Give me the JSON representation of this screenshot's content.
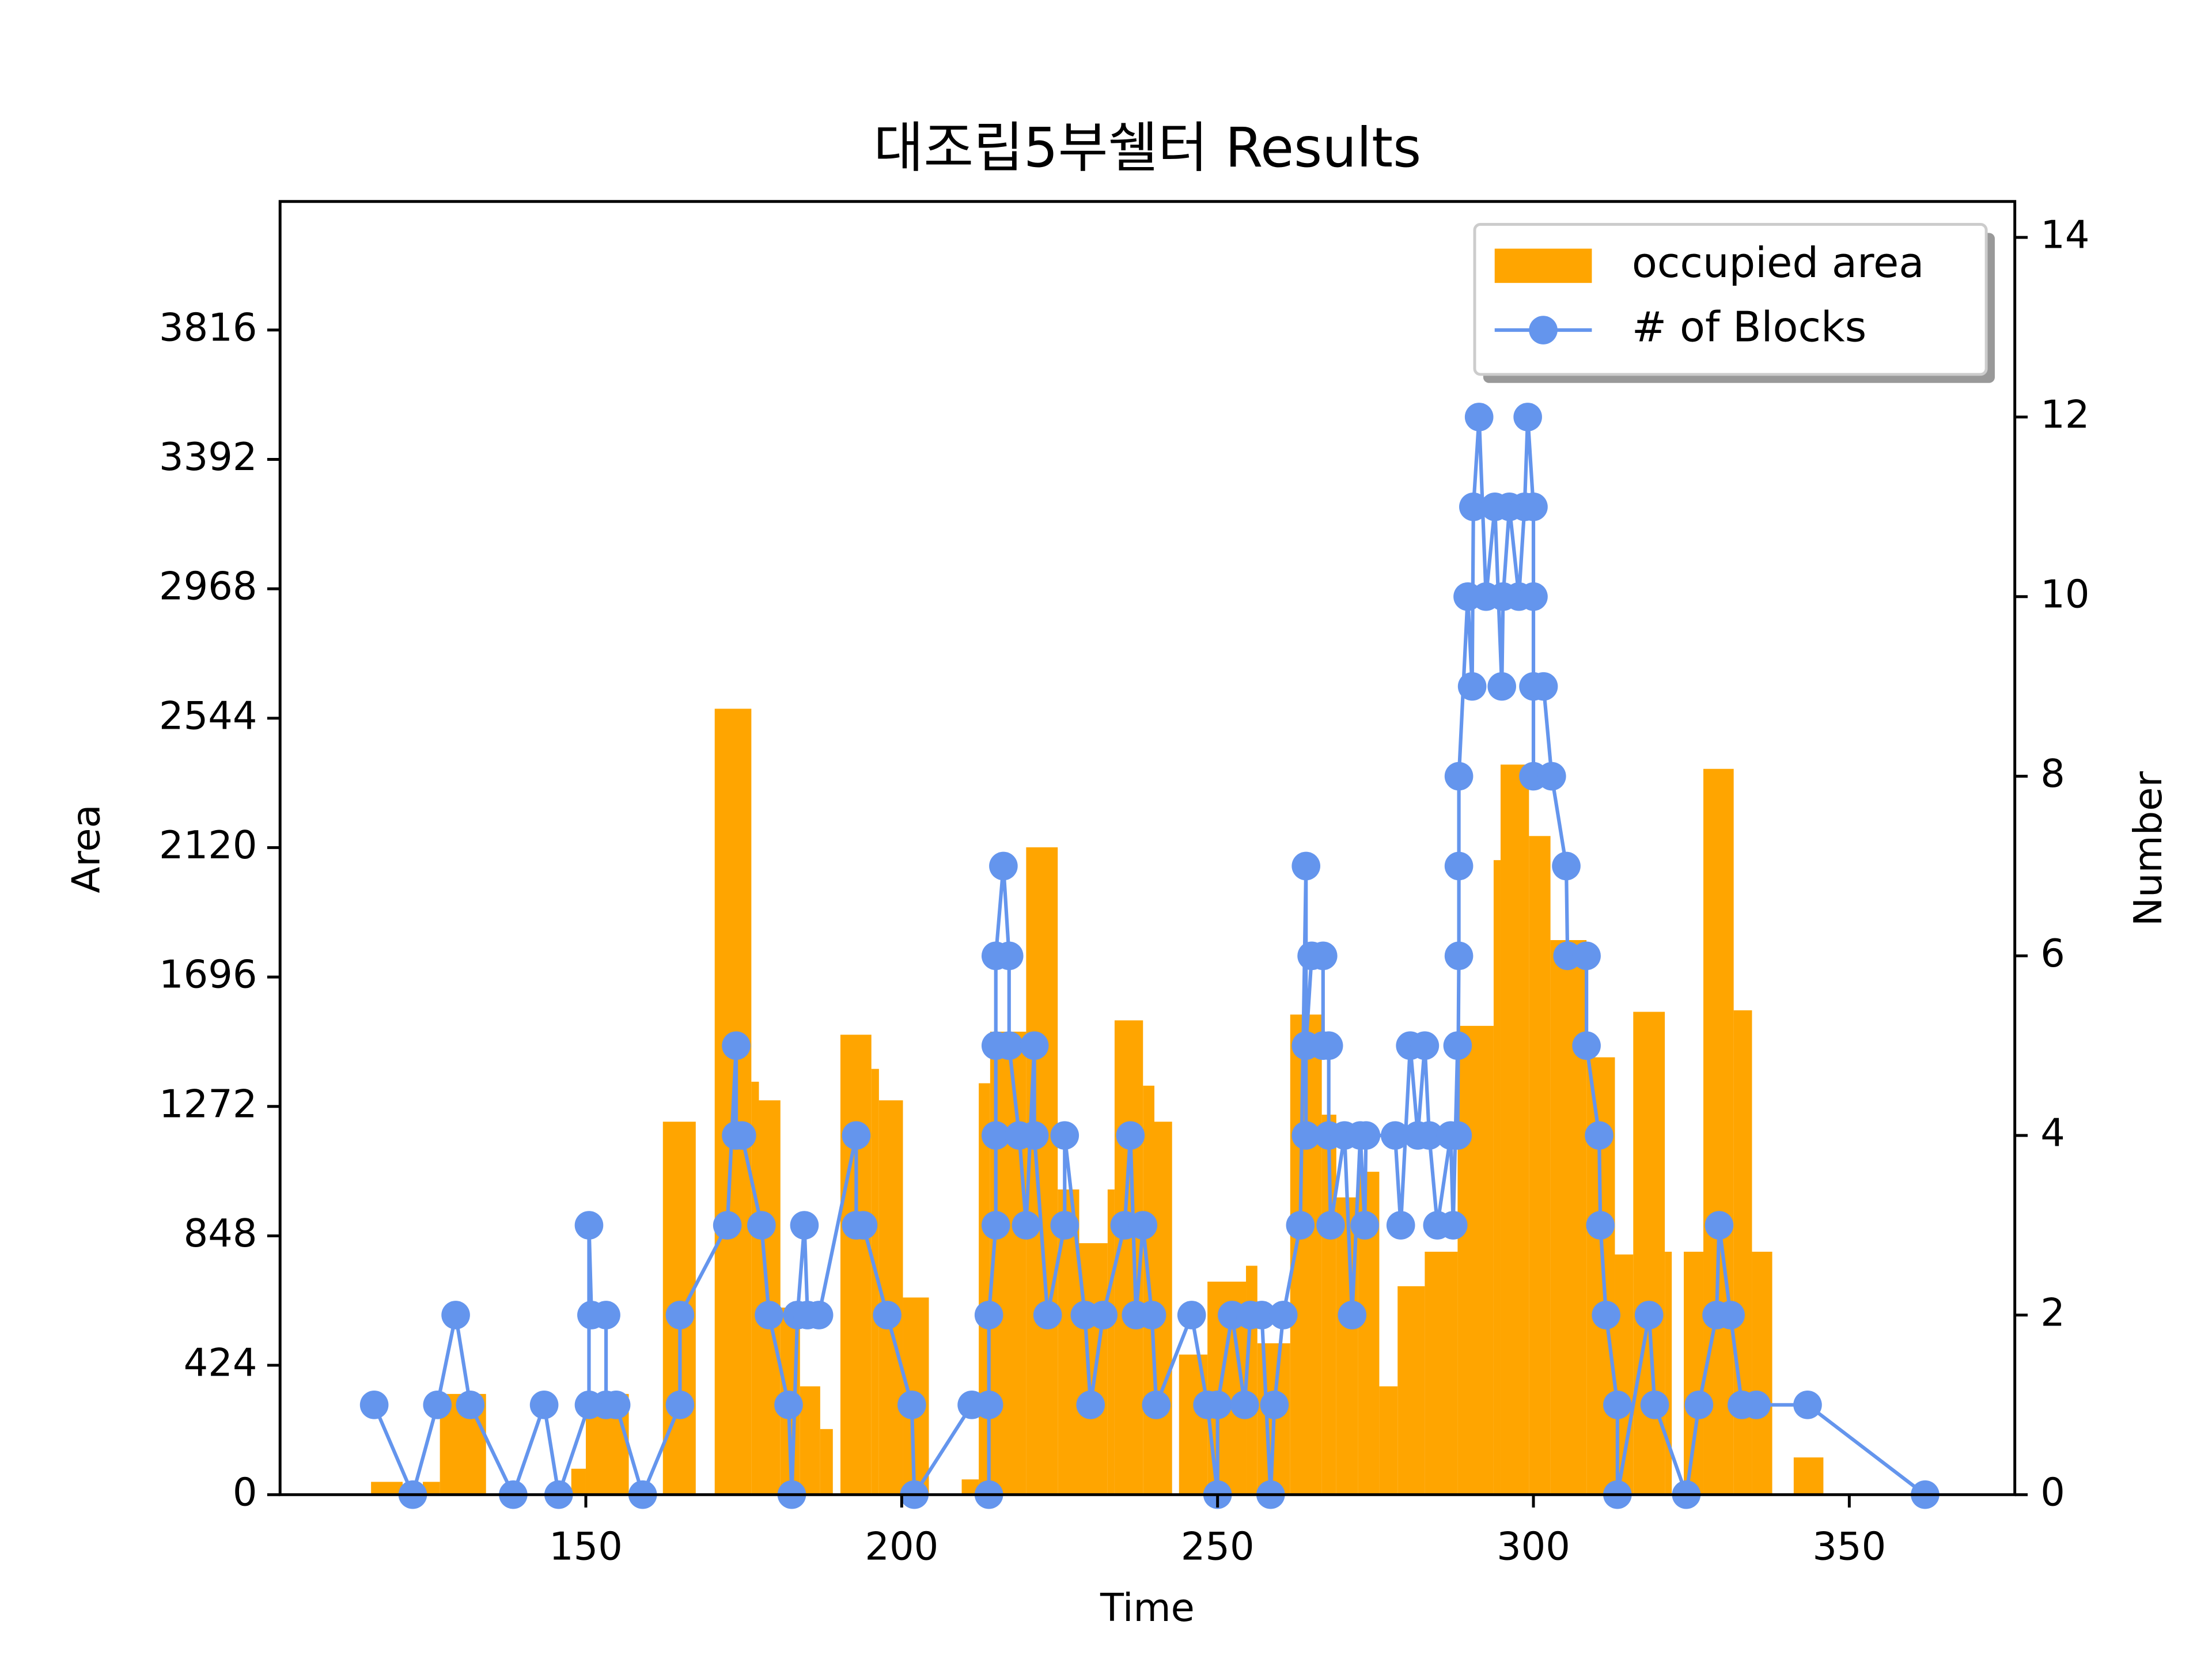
{
  "chart_data": {
    "type": "bar",
    "title": "대조립5부쉘터 Results",
    "xlabel": "Time",
    "ylabel": "Area",
    "y2label": "Number",
    "xlim": [
      101.6,
      376.2
    ],
    "xticks": [
      150,
      200,
      250,
      300,
      350
    ],
    "ylim": [
      0,
      4237
    ],
    "yticks": [
      0,
      424,
      848,
      1272,
      1696,
      2120,
      2544,
      2968,
      3392,
      3816
    ],
    "y2lim": [
      0,
      14.4
    ],
    "y2ticks": [
      0,
      2,
      4,
      6,
      8,
      10,
      12,
      14
    ],
    "legend": "upper right",
    "series": [
      {
        "name": "occupied area",
        "type": "bar",
        "color": "#ffa500",
        "bins": [
          116.0,
          121.0,
          124.2,
          126.9,
          134.2,
          147.7,
          150.0,
          156.8,
          162.2,
          167.4,
          170.4,
          176.2,
          177.4,
          180.8,
          183.9,
          187.1,
          189.1,
          190.3,
          195.2,
          196.4,
          200.2,
          204.3,
          209.5,
          212.2,
          214.0,
          219.7,
          224.7,
          228.1,
          232.6,
          233.7,
          238.2,
          240.0,
          242.8,
          243.9,
          248.4,
          254.5,
          256.3,
          261.5,
          266.5,
          268.8,
          272.2,
          275.6,
          278.5,
          282.8,
          288.0,
          293.7,
          294.8,
          299.3,
          302.7,
          308.4,
          312.9,
          315.8,
          320.8,
          321.9,
          323.8,
          326.9,
          331.7,
          334.6,
          337.8,
          341.2,
          345.9
        ],
        "values": [
          42,
          0,
          42,
          330,
          0,
          85,
          330,
          0,
          1222,
          0,
          2575,
          1353,
          1292,
          613,
          355,
          215,
          0,
          1507,
          1395,
          1292,
          646,
          0,
          50,
          1348,
          1517,
          2121,
          1000,
          824,
          1000,
          1554,
          1340,
          1222,
          0,
          459,
          698,
          750,
          496,
          1573,
          1245,
          974,
          1058,
          355,
          683,
          796,
          1536,
          2079,
          2392,
          2158,
          1817,
          1433,
          787,
          1582,
          796,
          0,
          796,
          2378,
          1587,
          796,
          0,
          122
        ]
      },
      {
        "name": "# of Blocks",
        "type": "line",
        "axis": "y2",
        "color": "#6495ed",
        "x": [
          116.5,
          122.6,
          126.5,
          129.4,
          131.7,
          138.5,
          143.4,
          145.7,
          150.5,
          150.5,
          150.9,
          153.2,
          153.2,
          154.8,
          159.0,
          164.9,
          164.9,
          172.4,
          173.8,
          173.8,
          174.7,
          177.8,
          179.0,
          182.1,
          182.6,
          183.5,
          184.6,
          185.1,
          186.9,
          192.8,
          192.8,
          193.9,
          197.7,
          201.6,
          202.0,
          211.1,
          213.8,
          213.8,
          213.8,
          214.9,
          214.9,
          214.9,
          214.9,
          216.1,
          217.0,
          217.0,
          218.6,
          219.7,
          221.0,
          221.0,
          223.1,
          225.8,
          225.8,
          229.0,
          229.9,
          231.9,
          235.3,
          236.2,
          237.1,
          238.2,
          239.6,
          240.3,
          245.9,
          248.4,
          250.0,
          250.0,
          252.3,
          254.3,
          255.2,
          257.0,
          258.4,
          259.0,
          260.4,
          263.1,
          264.0,
          264.0,
          264.0,
          264.9,
          266.7,
          266.7,
          267.6,
          267.6,
          267.9,
          270.1,
          271.3,
          272.6,
          273.3,
          273.5,
          278.1,
          279.0,
          280.5,
          281.7,
          282.8,
          283.5,
          284.8,
          286.9,
          287.3,
          288.0,
          288.0,
          288.2,
          288.2,
          288.2,
          289.6,
          290.3,
          290.5,
          291.4,
          292.5,
          293.9,
          295.0,
          295.2,
          296.2,
          297.7,
          298.6,
          299.1,
          300.0,
          300.0,
          300.0,
          300.0,
          301.6,
          302.9,
          305.2,
          305.4,
          308.4,
          308.4,
          310.4,
          310.6,
          311.5,
          313.3,
          313.3,
          318.3,
          319.2,
          324.2,
          326.2,
          329.0,
          329.4,
          331.2,
          333.0,
          335.3,
          343.4,
          362.0
        ],
        "values": [
          1,
          0,
          1,
          2,
          1,
          0,
          1,
          0,
          1,
          3,
          2,
          2,
          1,
          1,
          0,
          1,
          2,
          3,
          5,
          4,
          4,
          3,
          2,
          1,
          0,
          2,
          3,
          2,
          2,
          4,
          3,
          3,
          2,
          1,
          0,
          1,
          1,
          0,
          2,
          3,
          4,
          5,
          6,
          7,
          6,
          5,
          4,
          3,
          5,
          4,
          2,
          3,
          4,
          2,
          1,
          2,
          3,
          4,
          2,
          3,
          2,
          1,
          2,
          1,
          0,
          1,
          2,
          1,
          2,
          2,
          0,
          1,
          2,
          3,
          7,
          4,
          5,
          6,
          6,
          5,
          5,
          4,
          3,
          4,
          2,
          4,
          3,
          4,
          4,
          3,
          5,
          4,
          5,
          4,
          3,
          4,
          3,
          5,
          4,
          6,
          7,
          8,
          10,
          9,
          11,
          12,
          10,
          11,
          9,
          10,
          11,
          10,
          11,
          12,
          11,
          10,
          8,
          9,
          9,
          8,
          7,
          6,
          6,
          5,
          4,
          3,
          2,
          1,
          0,
          2,
          1,
          0,
          1,
          2,
          3,
          2,
          1,
          1,
          1,
          0
        ]
      }
    ]
  }
}
